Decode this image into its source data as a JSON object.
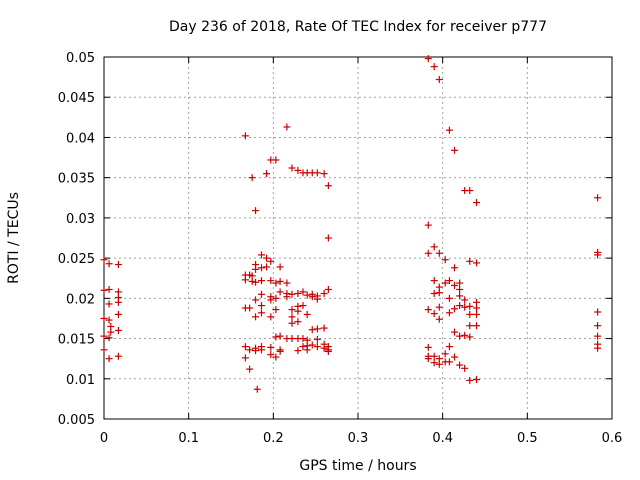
{
  "chart_data": {
    "type": "scatter",
    "title": "Day 236 of 2018, Rate Of TEC Index for receiver p777",
    "xlabel": "GPS time / hours",
    "ylabel": "ROTI / TECUs",
    "xlim": [
      0,
      0.6
    ],
    "ylim": [
      0.005,
      0.05
    ],
    "xticks": [
      0,
      0.1,
      0.2,
      0.3,
      0.4,
      0.5,
      0.6
    ],
    "xtick_labels": [
      "0",
      "0.1",
      "0.2",
      "0.3",
      "0.4",
      "0.5",
      "0.6"
    ],
    "yticks": [
      0.005,
      0.01,
      0.015,
      0.02,
      0.025,
      0.03,
      0.035,
      0.04,
      0.045,
      0.05
    ],
    "ytick_labels": [
      "0.005",
      "0.01",
      "0.015",
      "0.02",
      "0.025",
      "0.03",
      "0.035",
      "0.04",
      "0.045",
      "0.05"
    ],
    "grid": true,
    "marker": "+",
    "color": "#cc0000",
    "points": [
      [
        0.0,
        0.0248
      ],
      [
        0.0,
        0.021
      ],
      [
        0.0,
        0.0175
      ],
      [
        0.0,
        0.0153
      ],
      [
        0.0,
        0.0136
      ],
      [
        0.006,
        0.0243
      ],
      [
        0.006,
        0.0211
      ],
      [
        0.006,
        0.0193
      ],
      [
        0.006,
        0.0173
      ],
      [
        0.006,
        0.0151
      ],
      [
        0.006,
        0.0125
      ],
      [
        0.008,
        0.0165
      ],
      [
        0.008,
        0.0158
      ],
      [
        0.017,
        0.0242
      ],
      [
        0.017,
        0.0208
      ],
      [
        0.017,
        0.0201
      ],
      [
        0.017,
        0.0195
      ],
      [
        0.017,
        0.018
      ],
      [
        0.017,
        0.016
      ],
      [
        0.017,
        0.0128
      ],
      [
        0.167,
        0.0402
      ],
      [
        0.167,
        0.0229
      ],
      [
        0.167,
        0.0223
      ],
      [
        0.167,
        0.0188
      ],
      [
        0.167,
        0.014
      ],
      [
        0.167,
        0.0126
      ],
      [
        0.172,
        0.0229
      ],
      [
        0.172,
        0.0188
      ],
      [
        0.172,
        0.0136
      ],
      [
        0.172,
        0.0112
      ],
      [
        0.175,
        0.035
      ],
      [
        0.175,
        0.0228
      ],
      [
        0.175,
        0.0221
      ],
      [
        0.179,
        0.0309
      ],
      [
        0.179,
        0.0242
      ],
      [
        0.179,
        0.0236
      ],
      [
        0.179,
        0.022
      ],
      [
        0.179,
        0.0198
      ],
      [
        0.179,
        0.0177
      ],
      [
        0.179,
        0.0138
      ],
      [
        0.179,
        0.0135
      ],
      [
        0.181,
        0.0087
      ],
      [
        0.186,
        0.0254
      ],
      [
        0.186,
        0.0238
      ],
      [
        0.186,
        0.0222
      ],
      [
        0.186,
        0.0205
      ],
      [
        0.186,
        0.0191
      ],
      [
        0.186,
        0.0182
      ],
      [
        0.186,
        0.014
      ],
      [
        0.186,
        0.0136
      ],
      [
        0.192,
        0.0355
      ],
      [
        0.192,
        0.025
      ],
      [
        0.192,
        0.0239
      ],
      [
        0.197,
        0.0372
      ],
      [
        0.197,
        0.0246
      ],
      [
        0.197,
        0.0222
      ],
      [
        0.197,
        0.0202
      ],
      [
        0.197,
        0.0198
      ],
      [
        0.197,
        0.0177
      ],
      [
        0.197,
        0.0139
      ],
      [
        0.197,
        0.013
      ],
      [
        0.203,
        0.0372
      ],
      [
        0.203,
        0.0219
      ],
      [
        0.203,
        0.02
      ],
      [
        0.203,
        0.0186
      ],
      [
        0.203,
        0.0152
      ],
      [
        0.203,
        0.0127
      ],
      [
        0.208,
        0.0239
      ],
      [
        0.208,
        0.0221
      ],
      [
        0.208,
        0.0208
      ],
      [
        0.208,
        0.0153
      ],
      [
        0.208,
        0.0136
      ],
      [
        0.208,
        0.0134
      ],
      [
        0.216,
        0.0413
      ],
      [
        0.216,
        0.0219
      ],
      [
        0.216,
        0.0206
      ],
      [
        0.216,
        0.0202
      ],
      [
        0.216,
        0.015
      ],
      [
        0.222,
        0.0362
      ],
      [
        0.222,
        0.0205
      ],
      [
        0.222,
        0.0186
      ],
      [
        0.222,
        0.0177
      ],
      [
        0.222,
        0.0169
      ],
      [
        0.222,
        0.015
      ],
      [
        0.229,
        0.0359
      ],
      [
        0.229,
        0.0206
      ],
      [
        0.229,
        0.019
      ],
      [
        0.229,
        0.0184
      ],
      [
        0.229,
        0.0171
      ],
      [
        0.229,
        0.015
      ],
      [
        0.229,
        0.0135
      ],
      [
        0.235,
        0.0356
      ],
      [
        0.235,
        0.0208
      ],
      [
        0.235,
        0.0191
      ],
      [
        0.235,
        0.015
      ],
      [
        0.235,
        0.014
      ],
      [
        0.24,
        0.0356
      ],
      [
        0.24,
        0.0204
      ],
      [
        0.24,
        0.018
      ],
      [
        0.24,
        0.0148
      ],
      [
        0.24,
        0.0141
      ],
      [
        0.24,
        0.0136
      ],
      [
        0.246,
        0.0356
      ],
      [
        0.246,
        0.0205
      ],
      [
        0.246,
        0.0202
      ],
      [
        0.246,
        0.0161
      ],
      [
        0.246,
        0.0142
      ],
      [
        0.252,
        0.0356
      ],
      [
        0.252,
        0.0203
      ],
      [
        0.252,
        0.0199
      ],
      [
        0.252,
        0.0162
      ],
      [
        0.252,
        0.0149
      ],
      [
        0.252,
        0.014
      ],
      [
        0.26,
        0.0355
      ],
      [
        0.26,
        0.0206
      ],
      [
        0.26,
        0.0163
      ],
      [
        0.26,
        0.0143
      ],
      [
        0.26,
        0.0138
      ],
      [
        0.265,
        0.034
      ],
      [
        0.265,
        0.0275
      ],
      [
        0.265,
        0.0211
      ],
      [
        0.265,
        0.014
      ],
      [
        0.265,
        0.0136
      ],
      [
        0.265,
        0.0134
      ],
      [
        0.383,
        0.0498
      ],
      [
        0.383,
        0.0291
      ],
      [
        0.383,
        0.0256
      ],
      [
        0.383,
        0.0186
      ],
      [
        0.383,
        0.0139
      ],
      [
        0.383,
        0.0128
      ],
      [
        0.383,
        0.0125
      ],
      [
        0.39,
        0.0488
      ],
      [
        0.39,
        0.0264
      ],
      [
        0.39,
        0.0222
      ],
      [
        0.39,
        0.0206
      ],
      [
        0.39,
        0.0181
      ],
      [
        0.39,
        0.0128
      ],
      [
        0.39,
        0.012
      ],
      [
        0.396,
        0.0472
      ],
      [
        0.396,
        0.0256
      ],
      [
        0.396,
        0.0214
      ],
      [
        0.396,
        0.0207
      ],
      [
        0.396,
        0.0189
      ],
      [
        0.396,
        0.0174
      ],
      [
        0.396,
        0.0125
      ],
      [
        0.396,
        0.0118
      ],
      [
        0.403,
        0.0248
      ],
      [
        0.403,
        0.0219
      ],
      [
        0.403,
        0.0131
      ],
      [
        0.403,
        0.0121
      ],
      [
        0.408,
        0.0409
      ],
      [
        0.408,
        0.0222
      ],
      [
        0.408,
        0.02
      ],
      [
        0.408,
        0.0182
      ],
      [
        0.408,
        0.014
      ],
      [
        0.408,
        0.0121
      ],
      [
        0.414,
        0.0384
      ],
      [
        0.414,
        0.0238
      ],
      [
        0.414,
        0.0216
      ],
      [
        0.414,
        0.0187
      ],
      [
        0.414,
        0.0158
      ],
      [
        0.414,
        0.0127
      ],
      [
        0.42,
        0.0219
      ],
      [
        0.42,
        0.0211
      ],
      [
        0.42,
        0.0203
      ],
      [
        0.42,
        0.0191
      ],
      [
        0.42,
        0.0153
      ],
      [
        0.42,
        0.0117
      ],
      [
        0.426,
        0.0334
      ],
      [
        0.426,
        0.0198
      ],
      [
        0.426,
        0.0189
      ],
      [
        0.426,
        0.0154
      ],
      [
        0.426,
        0.0113
      ],
      [
        0.432,
        0.0334
      ],
      [
        0.432,
        0.0246
      ],
      [
        0.432,
        0.019
      ],
      [
        0.432,
        0.018
      ],
      [
        0.432,
        0.0166
      ],
      [
        0.432,
        0.0152
      ],
      [
        0.432,
        0.0098
      ],
      [
        0.44,
        0.0319
      ],
      [
        0.44,
        0.0244
      ],
      [
        0.44,
        0.0195
      ],
      [
        0.44,
        0.0188
      ],
      [
        0.44,
        0.018
      ],
      [
        0.44,
        0.0166
      ],
      [
        0.44,
        0.0099
      ],
      [
        0.583,
        0.0325
      ],
      [
        0.583,
        0.0257
      ],
      [
        0.583,
        0.0254
      ],
      [
        0.583,
        0.0183
      ],
      [
        0.583,
        0.0166
      ],
      [
        0.583,
        0.0153
      ],
      [
        0.583,
        0.0143
      ],
      [
        0.583,
        0.0138
      ]
    ]
  }
}
